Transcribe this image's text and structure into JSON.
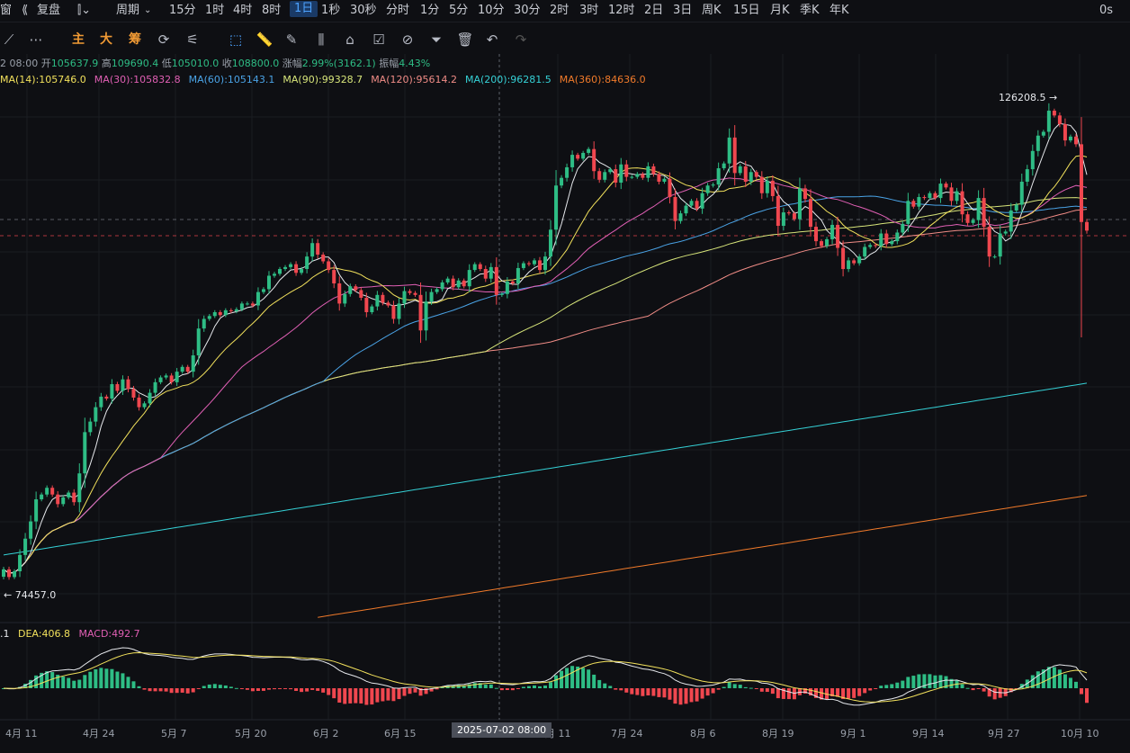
{
  "topbar": {
    "left_cut": "窗",
    "replay": "复盘",
    "period_label": "周期",
    "intervals": [
      "15分",
      "1时",
      "4时",
      "8时",
      "1日",
      "1秒",
      "30秒",
      "分时",
      "1分",
      "5分",
      "10分",
      "30分",
      "2时",
      "3时",
      "12时",
      "2日",
      "3日",
      "周K",
      "15日",
      "月K",
      "季K",
      "年K"
    ],
    "active_interval": "1日",
    "right_text": "0s"
  },
  "toolbar": {
    "buttons": [
      "主",
      "大",
      "筹"
    ]
  },
  "ohlc": {
    "date_cut": "2 08:00",
    "open_label": "开",
    "open": "105637.9",
    "high_label": "高",
    "high": "109690.4",
    "low_label": "低",
    "low": "105010.0",
    "close_label": "收",
    "close": "108800.0",
    "change_label": "涨幅",
    "change": "2.99%(3162.1)",
    "amp_label": "振幅",
    "amp": "4.43%"
  },
  "ma_legend": [
    {
      "text": "MA(14):105746.0",
      "color": "#f2e15c"
    },
    {
      "text": "MA(30):105832.8",
      "color": "#e05fb4"
    },
    {
      "text": "MA(60):105143.1",
      "color": "#4aa3e6"
    },
    {
      "text": "MA(90):99328.7",
      "color": "#d7e57a"
    },
    {
      "text": "MA(120):95614.2",
      "color": "#f08c86"
    },
    {
      "text": "MA(200):96281.5",
      "color": "#35d1d6"
    },
    {
      "text": "MA(360):84636.0",
      "color": "#f07a2a"
    }
  ],
  "price_labels": {
    "high": "126208.5",
    "low": "74457.0"
  },
  "macd_legend": {
    "dif_cut": ".1",
    "dea": "DEA:406.8",
    "macd": "MACD:492.7"
  },
  "x_labels": [
    "4月 11",
    "4月 24",
    "5月 7",
    "5月 20",
    "6月 2",
    "6月 15",
    "月 11",
    "7月 24",
    "8月 6",
    "8月 19",
    "9月 1",
    "9月 14",
    "9月 27",
    "10月 10"
  ],
  "crosshair_date": "2025-07-02 08:00",
  "colors": {
    "up": "#2ebd85",
    "down": "#f0474f",
    "bg": "#0e0f13"
  },
  "chart_data": {
    "type": "candlestick",
    "timeframe": "1D",
    "highest": 126208.5,
    "lowest": 74457.0,
    "closes": [
      77000,
      76200,
      76800,
      78500,
      80200,
      82000,
      84300,
      84800,
      85500,
      84800,
      83800,
      84500,
      85000,
      84000,
      87000,
      91300,
      92400,
      93900,
      95000,
      94800,
      96300,
      95600,
      96800,
      95800,
      94900,
      93900,
      94300,
      95400,
      96500,
      97000,
      97200,
      96500,
      97600,
      98100,
      97600,
      99300,
      102100,
      103100,
      103400,
      103800,
      103500,
      104000,
      103900,
      104100,
      104700,
      104700,
      104500,
      105900,
      106200,
      107600,
      107800,
      108300,
      108500,
      108800,
      107900,
      108300,
      109600,
      111000,
      109800,
      109100,
      108200,
      106800,
      104700,
      105700,
      106500,
      106100,
      105300,
      103800,
      104400,
      105600,
      104800,
      104500,
      103100,
      104700,
      106000,
      105800,
      105600,
      101900,
      104900,
      105900,
      106200,
      106900,
      107300,
      106400,
      107100,
      106500,
      108200,
      108800,
      108300,
      107300,
      108500,
      105600,
      105700,
      107000,
      106800,
      108400,
      108900,
      108800,
      109200,
      108200,
      109600,
      112400,
      117000,
      117800,
      118900,
      120200,
      119800,
      120400,
      120800,
      118500,
      117600,
      118400,
      118700,
      117300,
      119200,
      117900,
      117900,
      118200,
      117800,
      119000,
      118200,
      117400,
      117700,
      115800,
      113300,
      114100,
      114900,
      115400,
      114600,
      116200,
      117000,
      117100,
      118800,
      119300,
      122000,
      118300,
      119000,
      117400,
      118400,
      117900,
      116200,
      117500,
      115900,
      112800,
      114200,
      114100,
      113500,
      116700,
      115600,
      112700,
      111200,
      110700,
      111400,
      112900,
      110500,
      108300,
      109200,
      108900,
      109600,
      110600,
      110800,
      110700,
      112000,
      110900,
      111200,
      112100,
      113000,
      115400,
      114800,
      115800,
      115700,
      116200,
      115700,
      117200,
      116800,
      115400,
      116400,
      114000,
      113100,
      113400,
      115700,
      112700,
      109600,
      109600,
      112000,
      112200,
      114400,
      115000,
      117400,
      118700,
      120600,
      122200,
      122600,
      124800,
      124300,
      123400,
      121700,
      122100,
      121300,
      113200,
      112300
    ]
  }
}
